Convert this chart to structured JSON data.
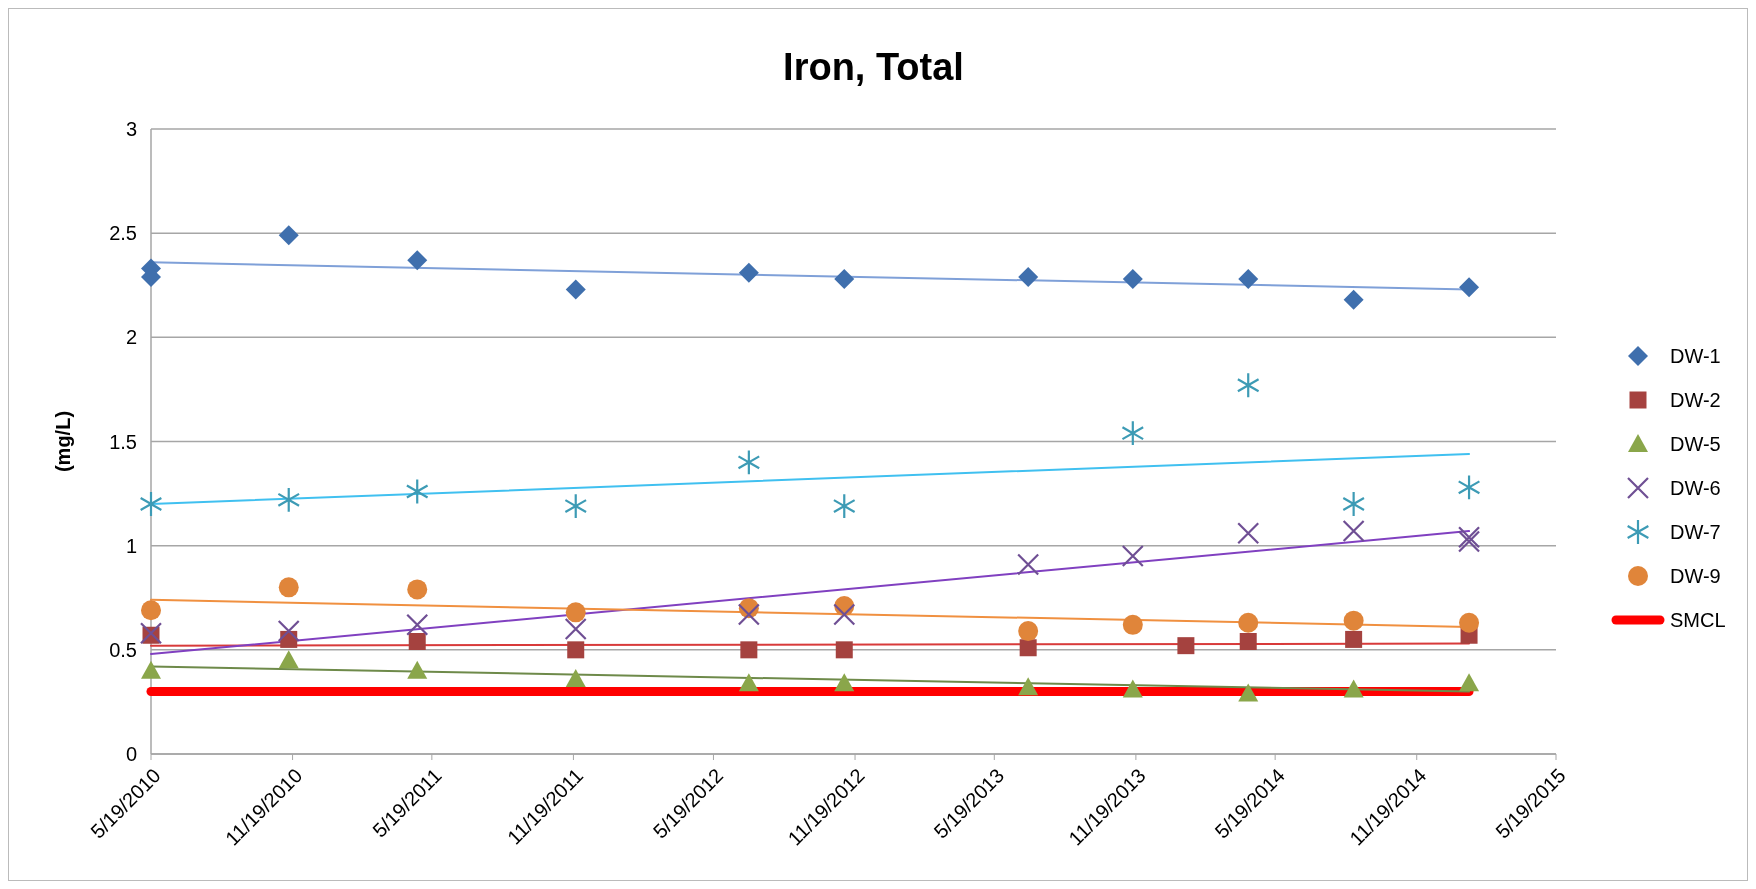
{
  "chart_data": {
    "type": "scatter",
    "title": "Iron, Total",
    "ylabel": "(mg/L)",
    "xlim": [
      "2010-05-19",
      "2015-05-19"
    ],
    "xticks": [
      {
        "value": "2010-05-19",
        "label": "5/19/2010"
      },
      {
        "value": "2010-11-19",
        "label": "11/19/2010"
      },
      {
        "value": "2011-05-19",
        "label": "5/19/2011"
      },
      {
        "value": "2011-11-19",
        "label": "11/19/2011"
      },
      {
        "value": "2012-05-19",
        "label": "5/19/2012"
      },
      {
        "value": "2012-11-19",
        "label": "11/19/2012"
      },
      {
        "value": "2013-05-19",
        "label": "5/19/2013"
      },
      {
        "value": "2013-11-19",
        "label": "11/19/2013"
      },
      {
        "value": "2014-05-19",
        "label": "5/19/2014"
      },
      {
        "value": "2014-11-19",
        "label": "11/19/2014"
      },
      {
        "value": "2015-05-19",
        "label": "5/19/2015"
      }
    ],
    "ylim": [
      0,
      3
    ],
    "yticks": [
      0,
      0.5,
      1,
      1.5,
      2,
      2.5,
      3
    ],
    "grid": "y",
    "legend": "right",
    "series": [
      {
        "name": "DW-1",
        "marker": "diamond",
        "color": "#3f6fad",
        "x": [
          "2010-05-19",
          "2010-05-19",
          "2010-11-14",
          "2011-04-30",
          "2011-11-22",
          "2012-07-04",
          "2012-11-05",
          "2013-07-02",
          "2013-11-15",
          "2014-04-14",
          "2014-08-29",
          "2015-01-26"
        ],
        "values": [
          2.33,
          2.29,
          2.49,
          2.37,
          2.23,
          2.31,
          2.28,
          2.29,
          2.28,
          2.28,
          2.18,
          2.24
        ]
      },
      {
        "name": "DW-2",
        "marker": "square",
        "color": "#a5423f",
        "x": [
          "2010-05-19",
          "2010-11-14",
          "2011-04-30",
          "2011-11-22",
          "2012-07-04",
          "2012-11-05",
          "2013-07-02",
          "2014-01-23",
          "2014-04-14",
          "2014-08-29",
          "2015-01-26"
        ],
        "values": [
          0.57,
          0.55,
          0.54,
          0.5,
          0.5,
          0.5,
          0.51,
          0.52,
          0.54,
          0.55,
          0.57
        ]
      },
      {
        "name": "DW-5",
        "marker": "triangle",
        "color": "#8aa64a",
        "x": [
          "2010-05-19",
          "2010-11-14",
          "2011-04-30",
          "2011-11-22",
          "2012-07-04",
          "2012-11-05",
          "2013-07-02",
          "2013-11-15",
          "2014-04-14",
          "2014-08-29",
          "2015-01-26"
        ],
        "values": [
          0.4,
          0.45,
          0.4,
          0.36,
          0.34,
          0.34,
          0.32,
          0.31,
          0.29,
          0.31,
          0.34
        ]
      },
      {
        "name": "DW-6",
        "marker": "cross",
        "color": "#6f4f94",
        "x": [
          "2010-05-19",
          "2010-11-14",
          "2011-04-30",
          "2011-11-22",
          "2012-07-04",
          "2012-11-05",
          "2013-07-02",
          "2013-11-15",
          "2014-04-14",
          "2014-08-29",
          "2015-01-26",
          "2015-01-26"
        ],
        "values": [
          0.58,
          0.59,
          0.62,
          0.6,
          0.67,
          0.67,
          0.91,
          0.95,
          1.06,
          1.07,
          1.04,
          1.02
        ]
      },
      {
        "name": "DW-7",
        "marker": "star",
        "color": "#3d9bb5",
        "x": [
          "2010-05-19",
          "2010-11-14",
          "2011-04-30",
          "2011-11-22",
          "2012-07-04",
          "2012-11-05",
          "2013-11-15",
          "2014-04-14",
          "2014-08-29",
          "2015-01-26"
        ],
        "values": [
          1.2,
          1.22,
          1.26,
          1.19,
          1.4,
          1.19,
          1.54,
          1.77,
          1.2,
          1.28
        ]
      },
      {
        "name": "DW-9",
        "marker": "circle",
        "color": "#e0853a",
        "x": [
          "2010-05-19",
          "2010-11-14",
          "2011-04-30",
          "2011-11-22",
          "2012-07-04",
          "2012-11-05",
          "2013-07-02",
          "2013-11-15",
          "2014-04-14",
          "2014-08-29",
          "2015-01-26"
        ],
        "values": [
          0.69,
          0.8,
          0.79,
          0.68,
          0.7,
          0.71,
          0.59,
          0.62,
          0.63,
          0.64,
          0.63
        ]
      },
      {
        "name": "SMCL",
        "type": "line",
        "marker": "none",
        "color": "#ff0000",
        "x": [
          "2010-05-19",
          "2015-01-26"
        ],
        "values": [
          0.3,
          0.3
        ]
      },
      {
        "type": "line",
        "marker": "none",
        "color": "#7fa0d8",
        "x": [
          "2010-05-19",
          "2015-01-26"
        ],
        "values": [
          2.36,
          2.23
        ]
      },
      {
        "type": "line",
        "marker": "none",
        "color": "#d83a3a",
        "x": [
          "2010-05-19",
          "2015-01-26"
        ],
        "values": [
          0.52,
          0.53
        ]
      },
      {
        "type": "line",
        "marker": "none",
        "color": "#6e8a4a",
        "x": [
          "2010-05-19",
          "2015-01-26"
        ],
        "values": [
          0.42,
          0.3
        ]
      },
      {
        "type": "line",
        "marker": "none",
        "color": "#8040c0",
        "x": [
          "2010-05-19",
          "2015-01-26"
        ],
        "values": [
          0.48,
          1.07
        ]
      },
      {
        "type": "line",
        "marker": "none",
        "color": "#40c0f0",
        "x": [
          "2010-05-19",
          "2015-01-26"
        ],
        "values": [
          1.2,
          1.44
        ]
      },
      {
        "type": "line",
        "marker": "none",
        "color": "#f09040",
        "x": [
          "2010-05-19",
          "2015-01-26"
        ],
        "values": [
          0.74,
          0.61
        ]
      }
    ]
  }
}
